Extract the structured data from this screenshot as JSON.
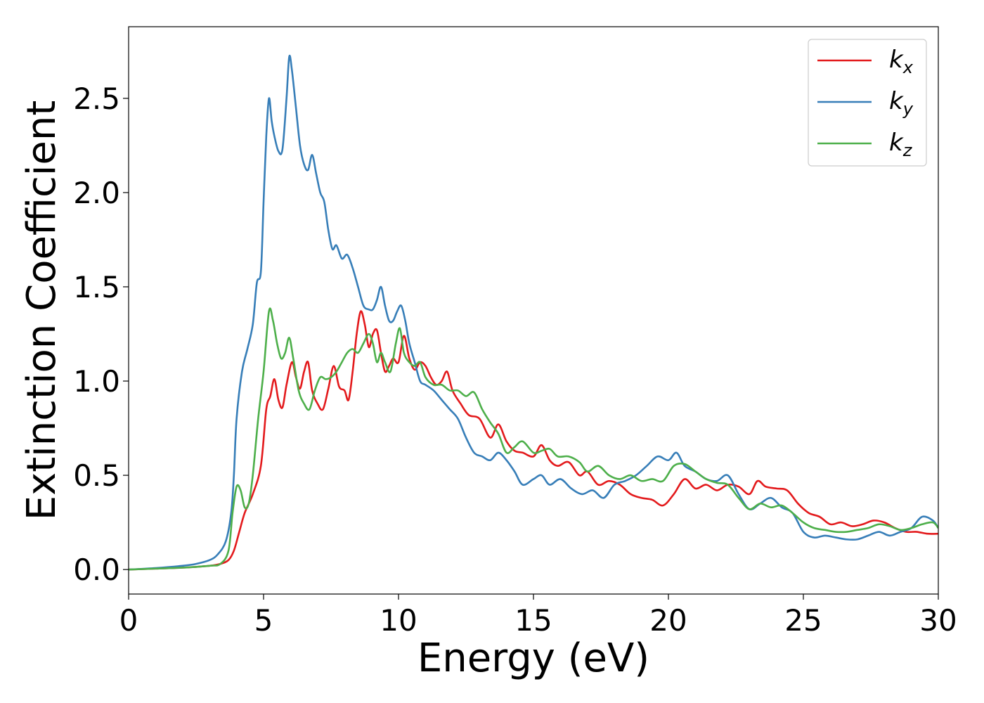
{
  "chart_data": {
    "type": "line",
    "title": "",
    "xlabel": "Energy (eV)",
    "ylabel": "Extinction Coefficient",
    "xlim": [
      0,
      30
    ],
    "ylim": [
      -0.13,
      2.88
    ],
    "xticks": [
      0,
      5,
      10,
      15,
      20,
      25,
      30
    ],
    "xtick_labels": [
      "0",
      "5",
      "10",
      "15",
      "20",
      "25",
      "30"
    ],
    "yticks": [
      0.0,
      0.5,
      1.0,
      1.5,
      2.0,
      2.5
    ],
    "ytick_labels": [
      "0.0",
      "0.5",
      "1.0",
      "1.5",
      "2.0",
      "2.5"
    ],
    "grid": false,
    "legend": {
      "position": "top-right"
    },
    "series": [
      {
        "name": "k_x",
        "legend_main": "k",
        "legend_sub": "x",
        "color": "#e31a1c",
        "x": [
          0,
          1,
          2,
          3,
          3.4,
          3.7,
          3.9,
          4.1,
          4.3,
          4.6,
          4.9,
          5.1,
          5.25,
          5.4,
          5.55,
          5.7,
          5.85,
          6.05,
          6.2,
          6.35,
          6.5,
          6.65,
          6.8,
          7.0,
          7.2,
          7.4,
          7.6,
          7.8,
          8.0,
          8.15,
          8.3,
          8.45,
          8.6,
          8.75,
          8.9,
          9.05,
          9.2,
          9.35,
          9.5,
          9.65,
          9.8,
          10.0,
          10.2,
          10.4,
          10.6,
          10.8,
          11.0,
          11.2,
          11.4,
          11.6,
          11.8,
          12.0,
          12.3,
          12.6,
          13.0,
          13.4,
          13.7,
          14.0,
          14.3,
          14.6,
          15.0,
          15.3,
          15.6,
          15.9,
          16.3,
          16.7,
          17.0,
          17.4,
          17.8,
          18.2,
          18.6,
          19.0,
          19.4,
          19.8,
          20.2,
          20.6,
          21.0,
          21.4,
          21.8,
          22.2,
          22.6,
          23.0,
          23.3,
          23.6,
          24.0,
          24.4,
          24.8,
          25.2,
          25.6,
          26.0,
          26.4,
          26.8,
          27.2,
          27.6,
          28.0,
          28.4,
          28.8,
          29.2,
          29.6,
          30.0
        ],
        "y": [
          0.0,
          0.005,
          0.01,
          0.02,
          0.03,
          0.05,
          0.1,
          0.2,
          0.3,
          0.4,
          0.55,
          0.85,
          0.92,
          1.01,
          0.9,
          0.86,
          0.98,
          1.1,
          1.02,
          0.96,
          1.05,
          1.1,
          0.95,
          0.88,
          0.85,
          0.96,
          1.08,
          0.97,
          0.95,
          0.9,
          1.05,
          1.25,
          1.37,
          1.3,
          1.18,
          1.25,
          1.27,
          1.15,
          1.05,
          1.08,
          1.12,
          1.1,
          1.24,
          1.12,
          1.06,
          1.1,
          1.08,
          1.02,
          0.98,
          1.0,
          1.05,
          0.95,
          0.88,
          0.82,
          0.8,
          0.7,
          0.77,
          0.68,
          0.63,
          0.62,
          0.6,
          0.66,
          0.58,
          0.55,
          0.57,
          0.5,
          0.52,
          0.45,
          0.47,
          0.45,
          0.4,
          0.38,
          0.37,
          0.34,
          0.4,
          0.48,
          0.43,
          0.45,
          0.42,
          0.45,
          0.44,
          0.4,
          0.47,
          0.44,
          0.43,
          0.42,
          0.35,
          0.3,
          0.28,
          0.24,
          0.25,
          0.23,
          0.24,
          0.26,
          0.25,
          0.22,
          0.2,
          0.2,
          0.19,
          0.19
        ]
      },
      {
        "name": "k_y",
        "legend_main": "k",
        "legend_sub": "y",
        "color": "#377eb8",
        "x": [
          0,
          1,
          2,
          2.5,
          3.0,
          3.3,
          3.6,
          3.8,
          3.9,
          4.0,
          4.2,
          4.4,
          4.6,
          4.75,
          4.9,
          5.0,
          5.1,
          5.2,
          5.3,
          5.4,
          5.55,
          5.7,
          5.85,
          5.95,
          6.05,
          6.2,
          6.35,
          6.5,
          6.65,
          6.8,
          6.95,
          7.1,
          7.25,
          7.4,
          7.55,
          7.7,
          7.9,
          8.1,
          8.3,
          8.5,
          8.7,
          8.9,
          9.05,
          9.2,
          9.35,
          9.5,
          9.65,
          9.8,
          9.95,
          10.1,
          10.25,
          10.4,
          10.6,
          10.8,
          11.0,
          11.3,
          11.6,
          11.9,
          12.2,
          12.5,
          12.8,
          13.1,
          13.4,
          13.7,
          14.0,
          14.3,
          14.6,
          15.0,
          15.3,
          15.6,
          16.0,
          16.4,
          16.8,
          17.2,
          17.6,
          18.0,
          18.4,
          18.8,
          19.2,
          19.6,
          20.0,
          20.3,
          20.6,
          21.0,
          21.4,
          21.8,
          22.2,
          22.6,
          23.0,
          23.4,
          23.8,
          24.2,
          24.6,
          25.0,
          25.4,
          25.8,
          26.2,
          26.6,
          27.0,
          27.4,
          27.8,
          28.2,
          28.6,
          29.0,
          29.4,
          29.8,
          30.0
        ],
        "y": [
          0.0,
          0.008,
          0.02,
          0.03,
          0.05,
          0.08,
          0.15,
          0.3,
          0.5,
          0.8,
          1.05,
          1.17,
          1.3,
          1.52,
          1.58,
          1.95,
          2.3,
          2.5,
          2.38,
          2.3,
          2.22,
          2.23,
          2.5,
          2.72,
          2.65,
          2.45,
          2.25,
          2.15,
          2.12,
          2.2,
          2.1,
          2.0,
          1.95,
          1.8,
          1.7,
          1.72,
          1.65,
          1.67,
          1.6,
          1.5,
          1.4,
          1.38,
          1.38,
          1.43,
          1.5,
          1.4,
          1.32,
          1.32,
          1.37,
          1.4,
          1.32,
          1.2,
          1.1,
          1.0,
          0.98,
          0.95,
          0.9,
          0.85,
          0.8,
          0.7,
          0.62,
          0.6,
          0.58,
          0.62,
          0.58,
          0.52,
          0.45,
          0.48,
          0.5,
          0.45,
          0.48,
          0.43,
          0.4,
          0.42,
          0.38,
          0.45,
          0.47,
          0.5,
          0.55,
          0.6,
          0.58,
          0.62,
          0.55,
          0.52,
          0.48,
          0.47,
          0.5,
          0.4,
          0.32,
          0.35,
          0.38,
          0.33,
          0.3,
          0.2,
          0.17,
          0.18,
          0.17,
          0.16,
          0.16,
          0.18,
          0.2,
          0.18,
          0.2,
          0.22,
          0.28,
          0.26,
          0.22
        ]
      },
      {
        "name": "k_z",
        "legend_main": "k",
        "legend_sub": "z",
        "color": "#4daf4a",
        "x": [
          0,
          1,
          2,
          3,
          3.4,
          3.7,
          3.85,
          4.0,
          4.15,
          4.3,
          4.45,
          4.6,
          4.8,
          5.0,
          5.2,
          5.35,
          5.5,
          5.65,
          5.8,
          5.95,
          6.1,
          6.3,
          6.5,
          6.7,
          6.9,
          7.1,
          7.3,
          7.5,
          7.7,
          7.9,
          8.1,
          8.3,
          8.5,
          8.7,
          8.9,
          9.05,
          9.2,
          9.35,
          9.5,
          9.7,
          9.9,
          10.05,
          10.2,
          10.4,
          10.6,
          10.8,
          11.0,
          11.3,
          11.6,
          11.9,
          12.2,
          12.5,
          12.8,
          13.1,
          13.4,
          13.7,
          14.0,
          14.3,
          14.6,
          15.0,
          15.3,
          15.6,
          15.9,
          16.3,
          16.7,
          17.0,
          17.4,
          17.8,
          18.2,
          18.6,
          19.0,
          19.4,
          19.8,
          20.2,
          20.6,
          21.0,
          21.4,
          21.8,
          22.2,
          22.6,
          23.0,
          23.4,
          23.8,
          24.2,
          24.6,
          25.0,
          25.4,
          25.8,
          26.2,
          26.6,
          27.0,
          27.4,
          27.8,
          28.2,
          28.6,
          29.0,
          29.4,
          29.8,
          30.0
        ],
        "y": [
          0.0,
          0.005,
          0.01,
          0.02,
          0.03,
          0.1,
          0.3,
          0.44,
          0.42,
          0.33,
          0.35,
          0.5,
          0.8,
          1.05,
          1.37,
          1.32,
          1.2,
          1.12,
          1.15,
          1.23,
          1.12,
          0.95,
          0.88,
          0.85,
          0.95,
          1.02,
          1.01,
          1.02,
          1.05,
          1.1,
          1.15,
          1.17,
          1.15,
          1.2,
          1.25,
          1.2,
          1.1,
          1.15,
          1.1,
          1.05,
          1.2,
          1.28,
          1.15,
          1.1,
          1.08,
          1.1,
          1.02,
          0.98,
          0.98,
          0.95,
          0.95,
          0.92,
          0.94,
          0.85,
          0.78,
          0.72,
          0.62,
          0.65,
          0.68,
          0.62,
          0.63,
          0.64,
          0.6,
          0.6,
          0.57,
          0.52,
          0.55,
          0.5,
          0.48,
          0.5,
          0.47,
          0.48,
          0.47,
          0.55,
          0.56,
          0.52,
          0.48,
          0.46,
          0.45,
          0.38,
          0.32,
          0.35,
          0.33,
          0.34,
          0.3,
          0.25,
          0.22,
          0.21,
          0.2,
          0.2,
          0.21,
          0.22,
          0.24,
          0.23,
          0.21,
          0.22,
          0.24,
          0.25,
          0.22
        ]
      }
    ]
  }
}
